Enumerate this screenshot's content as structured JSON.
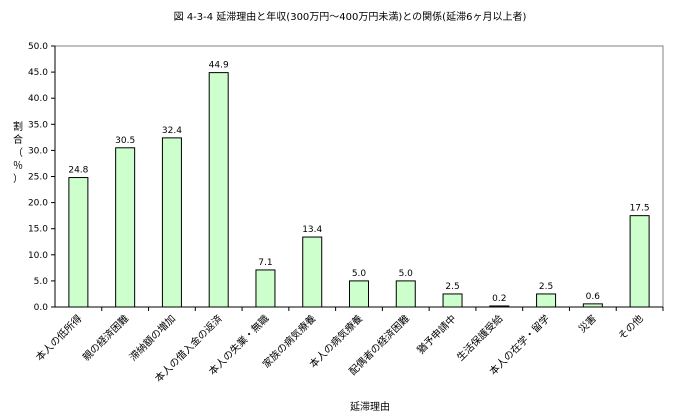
{
  "chart_data": {
    "type": "bar",
    "title": "図 4-3-4 延滞理由と年収(300万円～400万円未満)との関係(延滞6ヶ月以上者)",
    "xlabel": "延滞理由",
    "ylabel": "割合（％）",
    "ylim": [
      0,
      50
    ],
    "ytick_step": 5,
    "ytick_labels": [
      "0.0",
      "5.0",
      "10.0",
      "15.0",
      "20.0",
      "25.0",
      "30.0",
      "35.0",
      "40.0",
      "45.0",
      "50.0"
    ],
    "grid": false,
    "legend": "none",
    "categories": [
      "本人の低所得",
      "親の経済困難",
      "滞納額の増加",
      "本人の借入金の返済",
      "本人の失業・無職",
      "家族の病気療養",
      "本人の病気療養",
      "配偶者の経済困難",
      "猶予申請中",
      "生活保護受給",
      "本人の在学・留学",
      "災害",
      "その他"
    ],
    "values": [
      24.8,
      30.5,
      32.4,
      44.9,
      7.1,
      13.4,
      5.0,
      5.0,
      2.5,
      0.2,
      2.5,
      0.6,
      17.5
    ],
    "value_labels": [
      "24.8",
      "30.5",
      "32.4",
      "44.9",
      "7.1",
      "13.4",
      "5.0",
      "5.0",
      "2.5",
      "0.2",
      "2.5",
      "0.6",
      "17.5"
    ],
    "bar_fill": "#ccffcc",
    "bar_stroke": "#000000"
  }
}
